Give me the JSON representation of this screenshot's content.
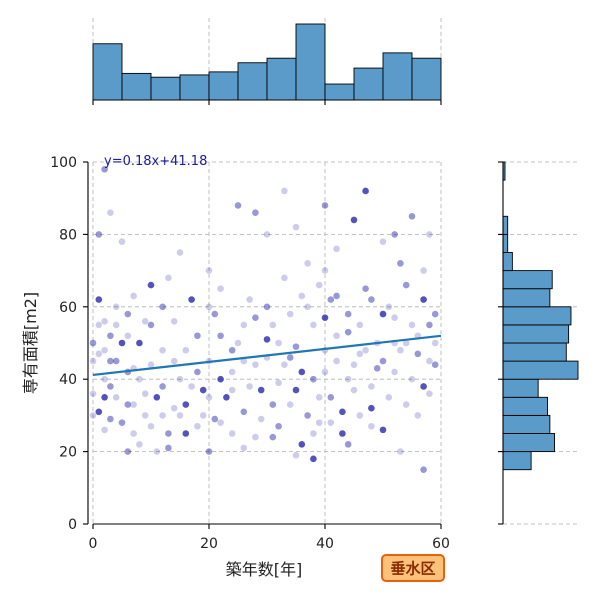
{
  "chart_data": {
    "type": "scatter",
    "xlabel": "築年数[年]",
    "ylabel": "専有面積[m2]",
    "xlim": [
      0,
      60
    ],
    "ylim": [
      0,
      100
    ],
    "x_ticks": [
      "0",
      "20",
      "40",
      "60"
    ],
    "y_ticks": [
      "0",
      "20",
      "40",
      "60",
      "80",
      "100"
    ],
    "grid": true,
    "regression": {
      "label": "y=0.18x+41.18",
      "slope": 0.18,
      "intercept": 41.18,
      "color": "#1f77b4"
    },
    "badge": {
      "text": "垂水区",
      "fill": "#ffc27a",
      "border": "#e8620c"
    },
    "point_color": "#1a1aa6",
    "bar_color": "#5a9bc9",
    "hist_x": {
      "bin_edges": [
        0,
        5,
        10,
        15,
        20,
        25,
        30,
        35,
        40,
        45,
        50,
        55,
        60
      ],
      "counts": [
        74,
        35,
        30,
        33,
        37,
        49,
        55,
        100,
        21,
        42,
        62,
        55
      ]
    },
    "hist_y": {
      "bin_edges": [
        20,
        25,
        30,
        35,
        40,
        45,
        50,
        55,
        60,
        65,
        70,
        75,
        80,
        85,
        90,
        95,
        100
      ],
      "counts": [
        22,
        20,
        19,
        15,
        32,
        27,
        28,
        29,
        20,
        21,
        4,
        2,
        2,
        0,
        0,
        0
      ]
    },
    "hist_y_below": {
      "range": [
        15,
        20
      ],
      "count": 12
    },
    "points": [
      [
        1,
        31
      ],
      [
        2,
        26
      ],
      [
        1,
        47
      ],
      [
        3,
        52
      ],
      [
        2,
        56
      ],
      [
        4,
        35
      ],
      [
        5,
        28
      ],
      [
        1,
        62
      ],
      [
        2,
        40
      ],
      [
        3,
        45
      ],
      [
        4,
        55
      ],
      [
        0,
        30
      ],
      [
        6,
        33
      ],
      [
        7,
        25
      ],
      [
        5,
        50
      ],
      [
        6,
        58
      ],
      [
        8,
        22
      ],
      [
        9,
        30
      ],
      [
        3,
        38
      ],
      [
        7,
        43
      ],
      [
        10,
        27
      ],
      [
        11,
        35
      ],
      [
        12,
        48
      ],
      [
        9,
        56
      ],
      [
        13,
        21
      ],
      [
        14,
        32
      ],
      [
        15,
        40
      ],
      [
        12,
        60
      ],
      [
        16,
        25
      ],
      [
        17,
        38
      ],
      [
        18,
        52
      ],
      [
        19,
        30
      ],
      [
        20,
        45
      ],
      [
        21,
        58
      ],
      [
        22,
        28
      ],
      [
        23,
        35
      ],
      [
        20,
        20
      ],
      [
        24,
        42
      ],
      [
        25,
        50
      ],
      [
        26,
        31
      ],
      [
        27,
        62
      ],
      [
        28,
        24
      ],
      [
        29,
        37
      ],
      [
        30,
        46
      ],
      [
        31,
        55
      ],
      [
        32,
        27
      ],
      [
        33,
        68
      ],
      [
        34,
        33
      ],
      [
        35,
        49
      ],
      [
        36,
        22
      ],
      [
        37,
        60
      ],
      [
        38,
        40
      ],
      [
        39,
        28
      ],
      [
        40,
        70
      ],
      [
        41,
        35
      ],
      [
        42,
        52
      ],
      [
        43,
        25
      ],
      [
        44,
        58
      ],
      [
        45,
        44
      ],
      [
        46,
        30
      ],
      [
        47,
        65
      ],
      [
        48,
        38
      ],
      [
        49,
        50
      ],
      [
        50,
        26
      ],
      [
        51,
        60
      ],
      [
        52,
        42
      ],
      [
        53,
        72
      ],
      [
        54,
        33
      ],
      [
        55,
        55
      ],
      [
        56,
        47
      ],
      [
        57,
        62
      ],
      [
        58,
        36
      ],
      [
        59,
        58
      ],
      [
        58,
        45
      ],
      [
        56,
        30
      ],
      [
        54,
        66
      ],
      [
        52,
        50
      ],
      [
        50,
        58
      ],
      [
        48,
        62
      ],
      [
        46,
        55
      ],
      [
        44,
        40
      ],
      [
        42,
        63
      ],
      [
        40,
        48
      ],
      [
        38,
        55
      ],
      [
        36,
        42
      ],
      [
        34,
        58
      ],
      [
        32,
        50
      ],
      [
        30,
        60
      ],
      [
        28,
        44
      ],
      [
        26,
        55
      ],
      [
        24,
        48
      ],
      [
        22,
        40
      ],
      [
        20,
        35
      ],
      [
        18,
        42
      ],
      [
        16,
        48
      ],
      [
        14,
        45
      ],
      [
        12,
        38
      ],
      [
        10,
        44
      ],
      [
        8,
        50
      ],
      [
        6,
        42
      ],
      [
        4,
        60
      ],
      [
        2,
        48
      ],
      [
        1,
        80
      ],
      [
        0,
        36
      ],
      [
        5,
        78
      ],
      [
        10,
        66
      ],
      [
        15,
        75
      ],
      [
        20,
        70
      ],
      [
        25,
        88
      ],
      [
        30,
        80
      ],
      [
        35,
        82
      ],
      [
        40,
        88
      ],
      [
        45,
        84
      ],
      [
        50,
        78
      ],
      [
        55,
        85
      ],
      [
        58,
        80
      ],
      [
        3,
        86
      ],
      [
        2,
        98
      ],
      [
        33,
        92
      ],
      [
        47,
        92
      ],
      [
        28,
        86
      ],
      [
        42,
        76
      ],
      [
        37,
        72
      ],
      [
        52,
        80
      ],
      [
        57,
        70
      ],
      [
        22,
        65
      ],
      [
        17,
        62
      ],
      [
        13,
        68
      ],
      [
        7,
        63
      ],
      [
        44,
        22
      ],
      [
        48,
        27
      ],
      [
        53,
        20
      ],
      [
        57,
        15
      ],
      [
        38,
        18
      ],
      [
        35,
        19
      ],
      [
        31,
        24
      ],
      [
        26,
        21
      ],
      [
        11,
        20
      ],
      [
        6,
        20
      ],
      [
        0,
        45
      ],
      [
        40,
        57
      ],
      [
        41,
        62
      ],
      [
        39,
        66
      ],
      [
        36,
        63
      ],
      [
        37,
        30
      ],
      [
        38,
        25
      ],
      [
        39,
        35
      ],
      [
        35,
        37
      ],
      [
        33,
        44
      ],
      [
        29,
        29
      ],
      [
        31,
        33
      ],
      [
        27,
        38
      ],
      [
        24,
        25
      ],
      [
        21,
        29
      ],
      [
        19,
        37
      ],
      [
        15,
        30
      ],
      [
        13,
        25
      ],
      [
        9,
        36
      ],
      [
        7,
        33
      ],
      [
        3,
        29
      ],
      [
        55,
        40
      ],
      [
        57,
        38
      ],
      [
        59,
        44
      ],
      [
        53,
        48
      ],
      [
        51,
        35
      ],
      [
        49,
        43
      ],
      [
        47,
        48
      ],
      [
        45,
        37
      ],
      [
        43,
        31
      ],
      [
        41,
        28
      ],
      [
        56,
        52
      ],
      [
        58,
        55
      ],
      [
        54,
        50
      ],
      [
        52,
        57
      ],
      [
        50,
        45
      ],
      [
        48,
        32
      ],
      [
        46,
        47
      ],
      [
        44,
        53
      ],
      [
        42,
        45
      ],
      [
        40,
        42
      ],
      [
        34,
        46
      ],
      [
        32,
        39
      ],
      [
        30,
        51
      ],
      [
        28,
        57
      ],
      [
        26,
        45
      ],
      [
        24,
        37
      ],
      [
        22,
        52
      ],
      [
        20,
        60
      ],
      [
        18,
        27
      ],
      [
        16,
        33
      ],
      [
        14,
        56
      ],
      [
        12,
        30
      ],
      [
        10,
        55
      ],
      [
        8,
        40
      ],
      [
        6,
        52
      ],
      [
        4,
        45
      ],
      [
        2,
        35
      ],
      [
        1,
        55
      ],
      [
        0,
        50
      ],
      [
        59,
        50
      ]
    ]
  }
}
